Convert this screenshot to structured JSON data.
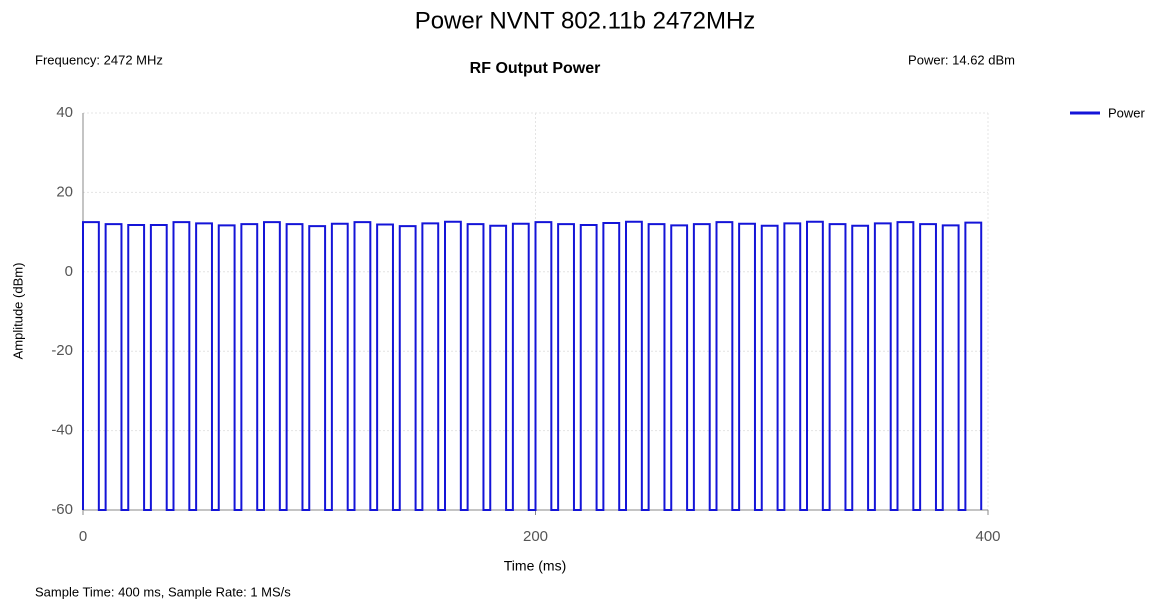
{
  "chart_data": {
    "type": "line",
    "page_title": "Power NVNT 802.11b 2472MHz",
    "title": "RF Output Power",
    "frequency_label": "Frequency: 2472 MHz",
    "power_label": "Power: 14.62 dBm",
    "footer": "Sample Time: 400 ms,  Sample Rate: 1 MS/s",
    "x_label": "Time (ms)",
    "y_label": "Amplitude (dBm)",
    "xlim": [
      0,
      400
    ],
    "xticks": [
      0,
      200,
      400
    ],
    "ylim": [
      -60,
      40
    ],
    "yticks": [
      -60,
      -40,
      -20,
      0,
      20,
      40
    ],
    "grid": true,
    "legend": "right",
    "x": [
      0,
      0,
      7,
      7,
      10,
      10,
      17,
      17,
      20,
      20,
      27,
      27,
      30,
      30,
      37,
      37,
      40,
      40,
      47,
      47,
      50,
      50,
      57,
      57,
      60,
      60,
      67,
      67,
      70,
      70,
      77,
      77,
      80,
      80,
      87,
      87,
      90,
      90,
      97,
      97,
      100,
      100,
      107,
      107,
      110,
      110,
      117,
      117,
      120,
      120,
      127,
      127,
      130,
      130,
      137,
      137,
      140,
      140,
      147,
      147,
      150,
      150,
      157,
      157,
      160,
      160,
      167,
      167,
      170,
      170,
      177,
      177,
      180,
      180,
      187,
      187,
      190,
      190,
      197,
      197,
      200,
      200,
      207,
      207,
      210,
      210,
      217,
      217,
      220,
      220,
      227,
      227,
      230,
      230,
      237,
      237,
      240,
      240,
      247,
      247,
      250,
      250,
      257,
      257,
      260,
      260,
      267,
      267,
      270,
      270,
      277,
      277,
      280,
      280,
      287,
      287,
      290,
      290,
      297,
      297,
      300,
      300,
      307,
      307,
      310,
      310,
      317,
      317,
      320,
      320,
      327,
      327,
      330,
      330,
      337,
      337,
      340,
      340,
      347,
      347,
      350,
      350,
      357,
      357,
      360,
      360,
      367,
      367,
      370,
      370,
      377,
      377,
      380,
      380,
      387,
      387,
      390,
      390,
      397,
      397
    ],
    "series": [
      {
        "name": "Power",
        "color": "#1414d8",
        "values": [
          -60,
          12.5,
          12.5,
          -60,
          -60,
          12,
          12,
          -60,
          -60,
          11.8,
          11.8,
          -60,
          -60,
          11.8,
          11.8,
          -60,
          -60,
          12.5,
          12.5,
          -60,
          -60,
          12.2,
          12.2,
          -60,
          -60,
          11.7,
          11.7,
          -60,
          -60,
          12,
          12,
          -60,
          -60,
          12.5,
          12.5,
          -60,
          -60,
          12,
          12,
          -60,
          -60,
          11.5,
          11.5,
          -60,
          -60,
          12.1,
          12.1,
          -60,
          -60,
          12.5,
          12.5,
          -60,
          -60,
          11.9,
          11.9,
          -60,
          -60,
          11.5,
          11.5,
          -60,
          -60,
          12.2,
          12.2,
          -60,
          -60,
          12.6,
          12.6,
          -60,
          -60,
          12,
          12,
          -60,
          -60,
          11.6,
          11.6,
          -60,
          -60,
          12.1,
          12.1,
          -60,
          -60,
          12.5,
          12.5,
          -60,
          -60,
          12,
          12,
          -60,
          -60,
          11.8,
          11.8,
          -60,
          -60,
          12.3,
          12.3,
          -60,
          -60,
          12.6,
          12.6,
          -60,
          -60,
          12,
          12,
          -60,
          -60,
          11.7,
          11.7,
          -60,
          -60,
          12,
          12,
          -60,
          -60,
          12.5,
          12.5,
          -60,
          -60,
          12.1,
          12.1,
          -60,
          -60,
          11.6,
          11.6,
          -60,
          -60,
          12.2,
          12.2,
          -60,
          -60,
          12.6,
          12.6,
          -60,
          -60,
          12,
          12,
          -60,
          -60,
          11.6,
          11.6,
          -60,
          -60,
          12.2,
          12.2,
          -60,
          -60,
          12.5,
          12.5,
          -60,
          -60,
          12,
          12,
          -60,
          -60,
          11.7,
          11.7,
          -60,
          -60,
          12.4,
          12.4,
          -60
        ]
      }
    ]
  }
}
